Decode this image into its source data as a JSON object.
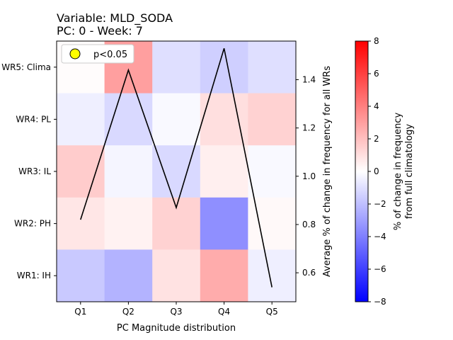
{
  "chart_data": {
    "type": "heatmap",
    "title_line1": "Variable: MLD_SODA",
    "title_line2": "PC: 0 - Week: 7",
    "xlabel": "PC Magnitude distribution",
    "ylabel_right": "Average % of change in frequency for all WRs",
    "colorbar_label_line1": "% of change in frequency",
    "colorbar_label_line2": "from full climatology",
    "x_categories": [
      "Q1",
      "Q2",
      "Q3",
      "Q4",
      "Q5"
    ],
    "y_categories": [
      "WR5: Clima",
      "WR4: PL",
      "WR3: IL",
      "WR2: PH",
      "WR1: IH"
    ],
    "heat_values": [
      [
        0.1,
        3.0,
        -1.0,
        -1.5,
        -1.0
      ],
      [
        -0.5,
        -1.2,
        -0.2,
        1.0,
        1.4
      ],
      [
        1.6,
        -0.3,
        -1.2,
        0.5,
        -0.2
      ],
      [
        0.8,
        0.4,
        1.4,
        -3.5,
        0.2
      ],
      [
        -1.7,
        -2.4,
        0.9,
        2.6,
        -0.5
      ]
    ],
    "colorbar": {
      "min": -8,
      "max": 8,
      "ticks": [
        "8",
        "6",
        "4",
        "2",
        "0",
        "−2",
        "−4",
        "−6",
        "−8"
      ],
      "colormap": "bwr"
    },
    "line_series": {
      "values": [
        0.82,
        1.44,
        0.87,
        1.53,
        0.54
      ],
      "color": "#000000"
    },
    "right_axis": {
      "ylim": [
        0.48,
        1.56
      ],
      "ticks": [
        "1.4",
        "1.2",
        "1.0",
        "0.8",
        "0.6"
      ]
    },
    "legend": {
      "label": "p<0.05",
      "marker_color": "#ffff00",
      "placement": "upper-left"
    }
  }
}
